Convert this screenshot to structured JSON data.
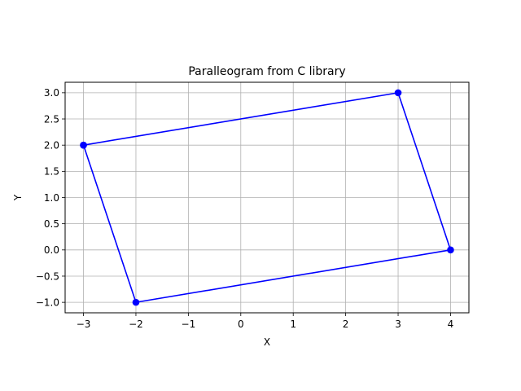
{
  "chart_data": {
    "type": "line",
    "title": "Paralleogram from C library",
    "xlabel": "X",
    "ylabel": "Y",
    "xlim": [
      -3.35,
      4.35
    ],
    "ylim": [
      -1.2,
      3.2
    ],
    "xticks": [
      -3,
      -2,
      -1,
      0,
      1,
      2,
      3,
      4
    ],
    "xtick_labels": [
      "−3",
      "−2",
      "−1",
      "0",
      "1",
      "2",
      "3",
      "4"
    ],
    "yticks": [
      -1.0,
      -0.5,
      0.0,
      0.5,
      1.0,
      1.5,
      2.0,
      2.5,
      3.0
    ],
    "ytick_labels": [
      "−1.0",
      "−0.5",
      "0.0",
      "0.5",
      "1.0",
      "1.5",
      "2.0",
      "2.5",
      "3.0"
    ],
    "grid": true,
    "series": [
      {
        "color": "#0000ff",
        "marker": "circle",
        "x": [
          -3,
          3,
          4,
          -2,
          -3
        ],
        "y": [
          2,
          3,
          0,
          -1,
          2
        ]
      }
    ]
  }
}
